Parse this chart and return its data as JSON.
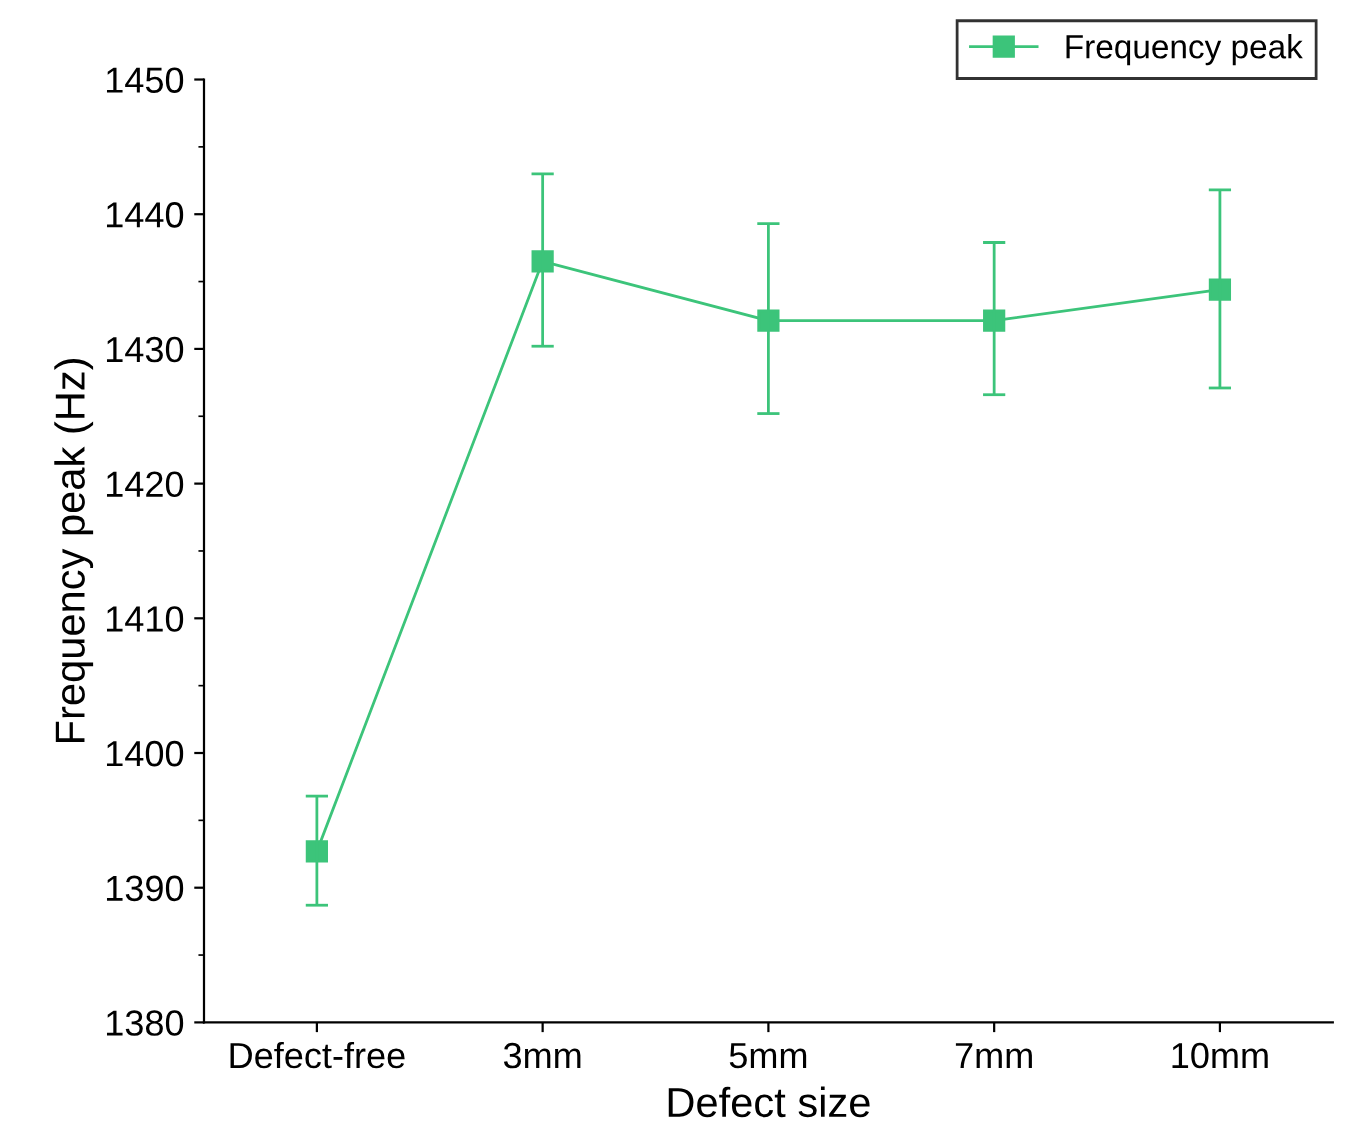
{
  "chart_data": {
    "type": "line",
    "xlabel": "Defect size",
    "ylabel": "Frequency peak (Hz)",
    "categories": [
      "Defect-free",
      "3mm",
      "5mm",
      "7mm",
      "10mm"
    ],
    "series": [
      {
        "name": "Frequency peak",
        "color": "#3cc47a",
        "values": [
          1392.7,
          1436.5,
          1432.1,
          1432.1,
          1434.4
        ],
        "errors": [
          [
            1388.7,
            1396.8
          ],
          [
            1430.2,
            1443.0
          ],
          [
            1425.2,
            1439.3
          ],
          [
            1426.6,
            1437.9
          ],
          [
            1427.1,
            1441.8
          ]
        ]
      }
    ],
    "ylim": [
      1380,
      1450
    ],
    "yticks": [
      1380,
      1390,
      1400,
      1410,
      1420,
      1430,
      1440,
      1450
    ],
    "grid": false,
    "legend": "top right",
    "marker": "square",
    "line_style": "solid"
  }
}
